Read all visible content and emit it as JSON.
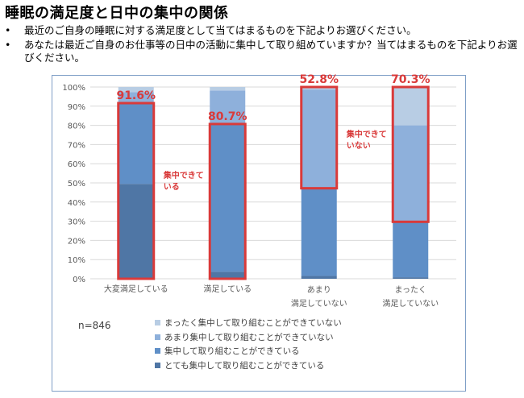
{
  "title": "睡眠の満足度と日中の集中の関係",
  "bullets": [
    "最近のご自身の睡眠に対する満足度として当てはまるものを下記よりお選びください。",
    "あなたは最近ご自身のお仕事等の日中の活動に集中して取り組めていますか？当てはまるものを下記よりお選びください。"
  ],
  "bullet_marker": "•",
  "n_label": "n=846",
  "colors": {
    "none": "#b8cde4",
    "not_much": "#8eb0db",
    "focused": "#5f8fc7",
    "very_focused": "#4f76a5",
    "highlight": "#d93a3a",
    "axis_text": "#595959",
    "grid": "#d9d9d9"
  },
  "chart_data": {
    "type": "bar",
    "stacked": true,
    "categories": [
      "大変満足している",
      "満足している",
      "あまり\n満足していない",
      "まったく\n満足していない"
    ],
    "series": [
      {
        "name": "とても集中して取り組むことができている",
        "color": "#4f76a5",
        "values": [
          49.5,
          3.7,
          1.5,
          0.8
        ]
      },
      {
        "name": "集中して取り組むことができている",
        "color": "#5f8fc7",
        "values": [
          42.1,
          77.0,
          45.7,
          29.0
        ]
      },
      {
        "name": "あまり集中して取り組むことができていない",
        "color": "#8eb0db",
        "values": [
          5.7,
          17.5,
          51.5,
          50.2
        ]
      },
      {
        "name": "まったく集中して取り組むことができていない",
        "color": "#b8cde4",
        "values": [
          2.7,
          1.8,
          1.3,
          20.0
        ]
      }
    ],
    "yticks": [
      "0%",
      "10%",
      "20%",
      "30%",
      "40%",
      "50%",
      "60%",
      "70%",
      "80%",
      "90%",
      "100%"
    ],
    "ylim": [
      0,
      100
    ],
    "highlight_labels": [
      "91.6%",
      "80.7%",
      "52.8%",
      "70.3%"
    ],
    "highlight_ranges": [
      [
        0,
        91.6
      ],
      [
        0,
        80.7
      ],
      [
        47.2,
        100
      ],
      [
        29.7,
        100
      ]
    ],
    "annotations": [
      {
        "text": "集中できて\nいる",
        "category_index": 0
      },
      {
        "text": "集中できて\nいない",
        "category_index": 2
      }
    ],
    "legend_order": [
      3,
      2,
      1,
      0
    ]
  }
}
